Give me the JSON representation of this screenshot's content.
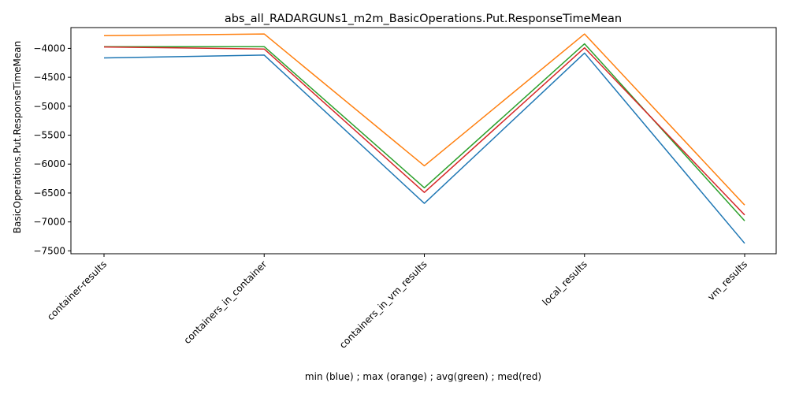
{
  "chart_data": {
    "type": "line",
    "title": "abs_all_RADARGUNs1_m2m_BasicOperations.Put.ResponseTimeMean",
    "xlabel": "min (blue) ; max (orange) ; avg(green) ; med(red)",
    "ylabel": "BasicOperations.Put.ResponseTimeMean",
    "categories": [
      "container-results",
      "containers_in_container",
      "containers_in_vm_results",
      "local_results",
      "vm_results"
    ],
    "ylim": [
      -7550,
      -3640
    ],
    "yticks": [
      -4000,
      -4500,
      -5000,
      -5500,
      -6000,
      -6500,
      -7000,
      -7500
    ],
    "grid": false,
    "series": [
      {
        "color": "#1f77b4",
        "values": [
          -4165,
          -4115,
          -6680,
          -4080,
          -7370
        ]
      },
      {
        "color": "#ff7f0e",
        "values": [
          -3780,
          -3750,
          -6030,
          -3750,
          -6710
        ]
      },
      {
        "color": "#2ca02c",
        "values": [
          -3970,
          -3970,
          -6410,
          -3920,
          -6980
        ]
      },
      {
        "color": "#d62728",
        "values": [
          -3975,
          -4010,
          -6490,
          -3990,
          -6880
        ]
      }
    ]
  }
}
